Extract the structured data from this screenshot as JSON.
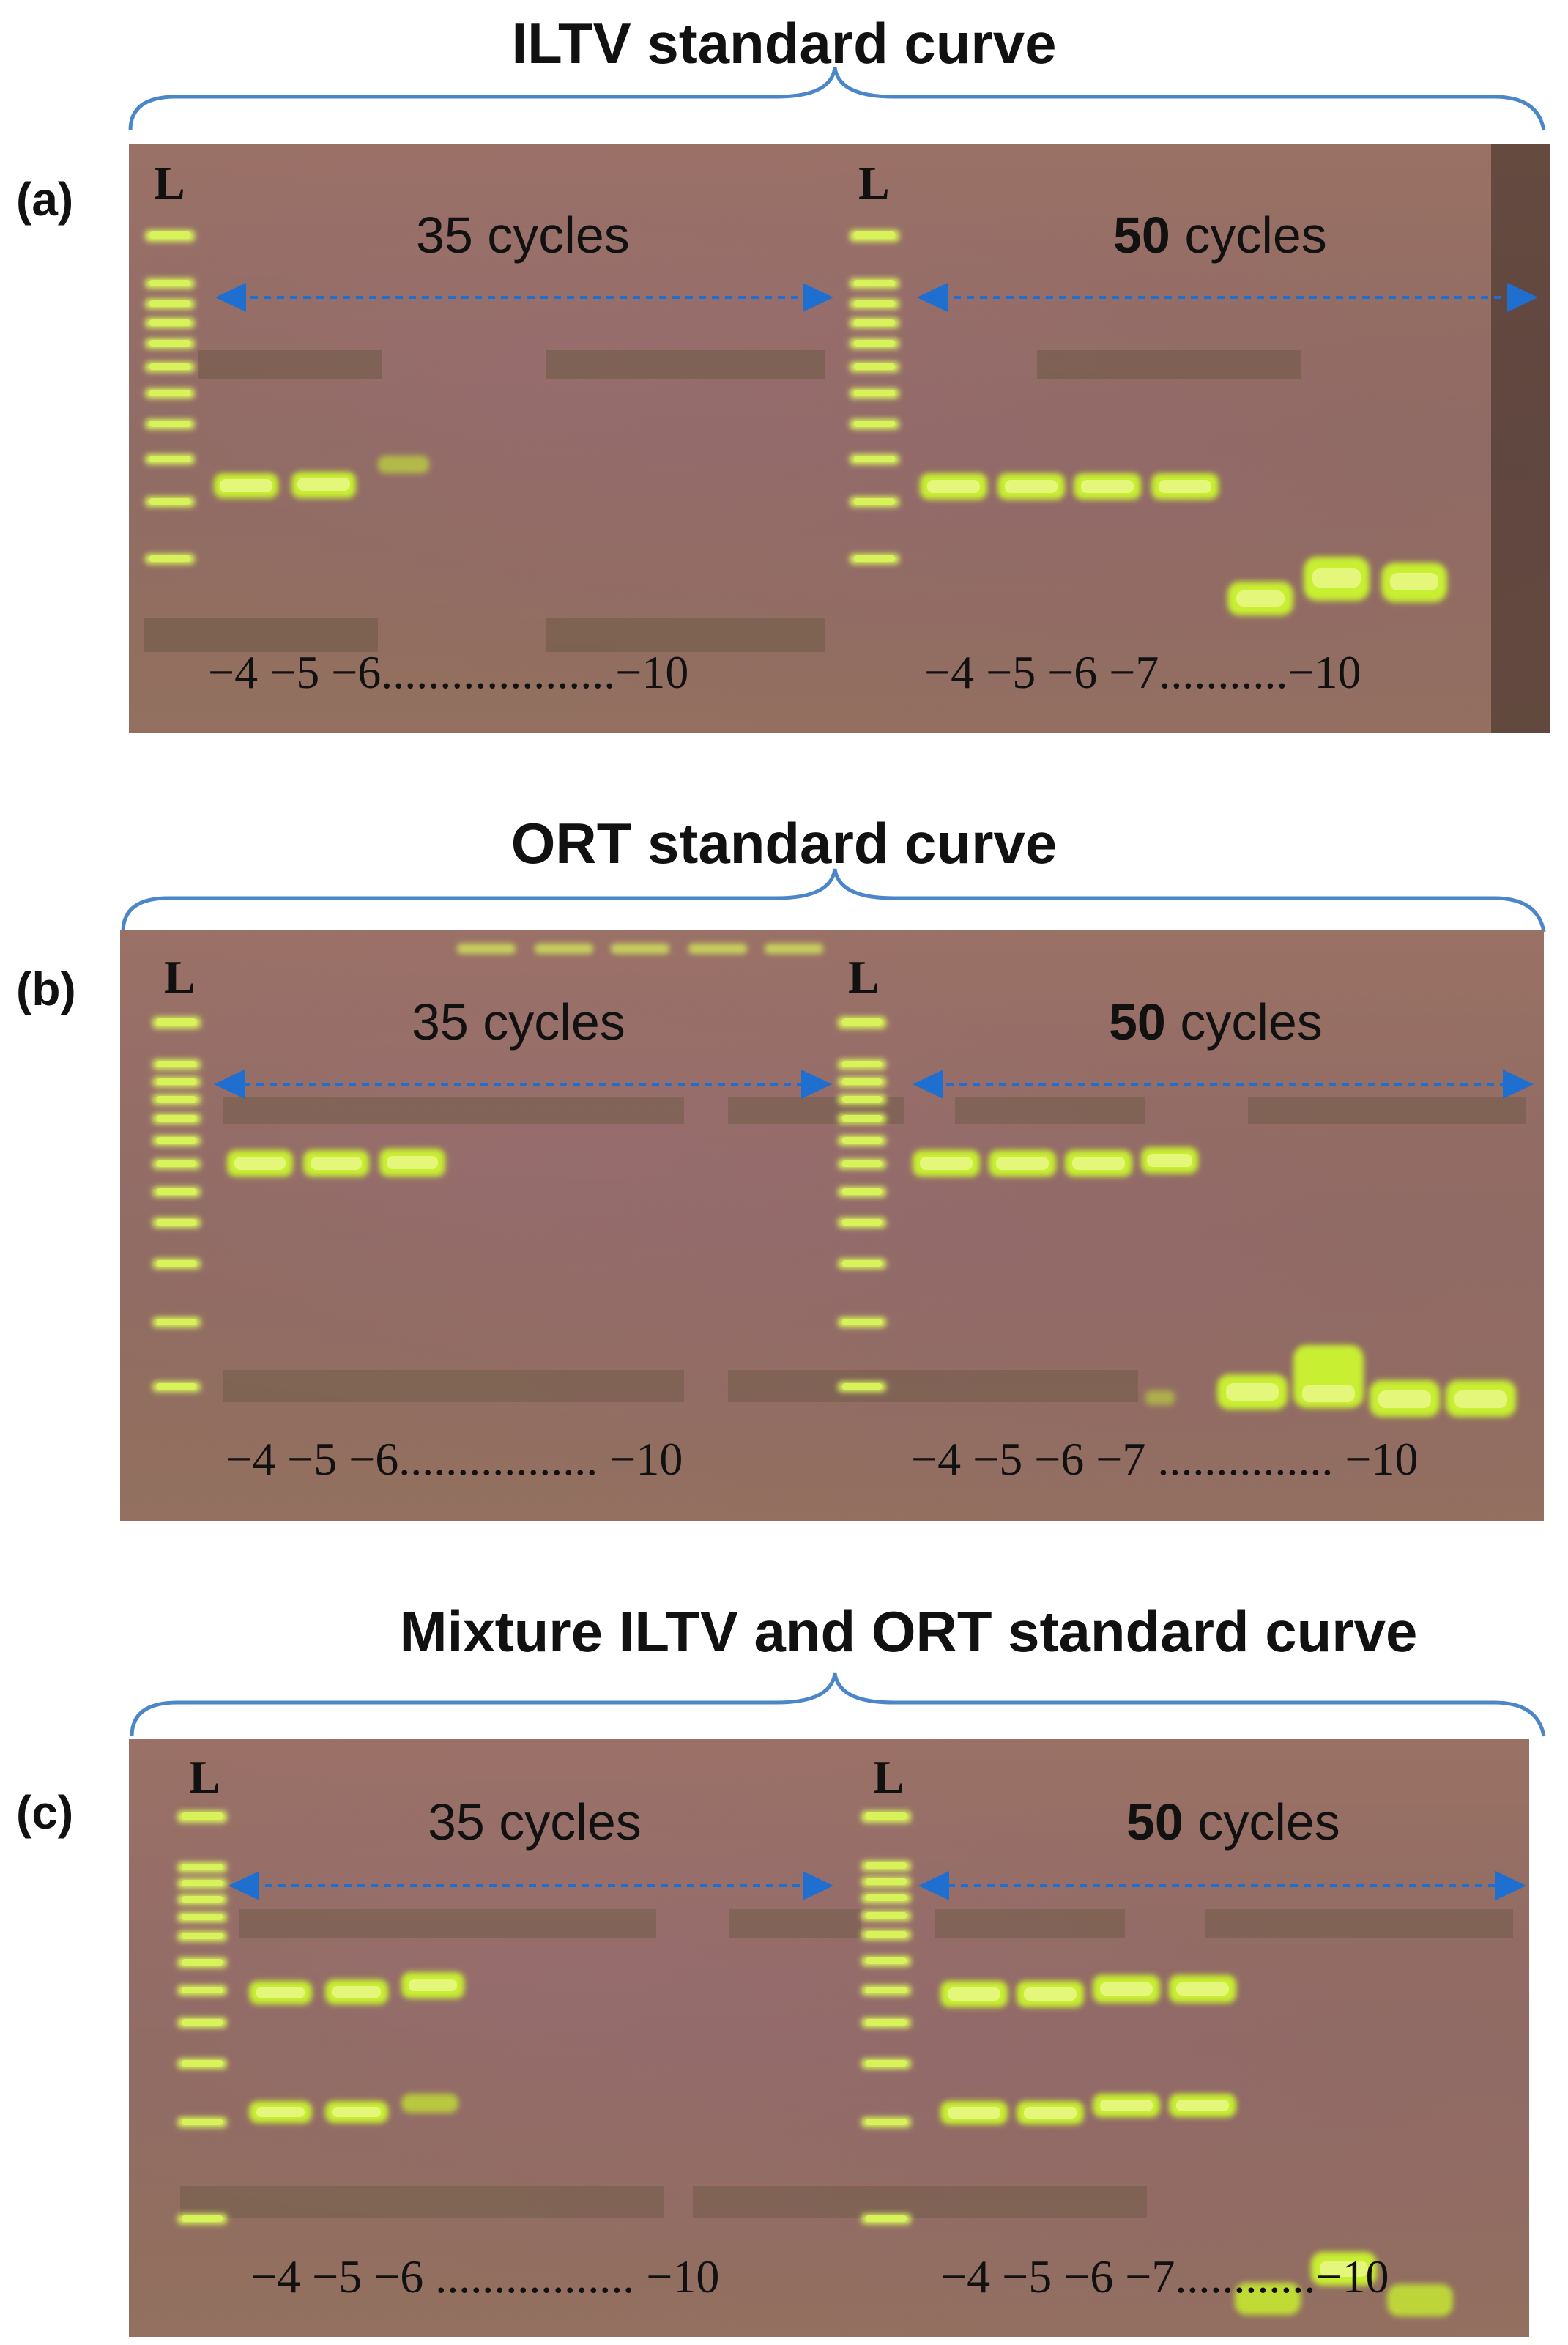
{
  "panels": [
    {
      "label": "(a)",
      "title": "ILTV standard curve",
      "ladder_label_left": "L",
      "ladder_label_right": "L",
      "left_cycles": "35 cycles",
      "right_cycles_number": "50",
      "right_cycles_word": " cycles",
      "left_dilutions": "−4  −5  −6....................−10",
      "right_dilutions": "−4  −5  −6  −7...........−10"
    },
    {
      "label": "(b)",
      "title": "ORT standard curve",
      "ladder_label_left": "L",
      "ladder_label_right": "L",
      "left_cycles": "35 cycles",
      "right_cycles_number": "50",
      "right_cycles_word": " cycles",
      "left_dilutions": "−4  −5  −6................. −10",
      "right_dilutions": "−4  −5  −6  −7 ............... −10"
    },
    {
      "label": "(c)",
      "title": "Mixture ILTV and ORT standard curve",
      "ladder_label_left": "L",
      "ladder_label_right": "L",
      "left_cycles": "35 cycles",
      "right_cycles_number": "50",
      "right_cycles_word": " cycles",
      "left_dilutions": "−4  −5  −6 ................. −10",
      "right_dilutions": "−4  −5  −6  −7............−10"
    }
  ],
  "colors": {
    "brace": "#4a86c8",
    "arrow": "#1f6fd0",
    "band": "#d8f25a",
    "band_glow": "#b6e51e"
  }
}
